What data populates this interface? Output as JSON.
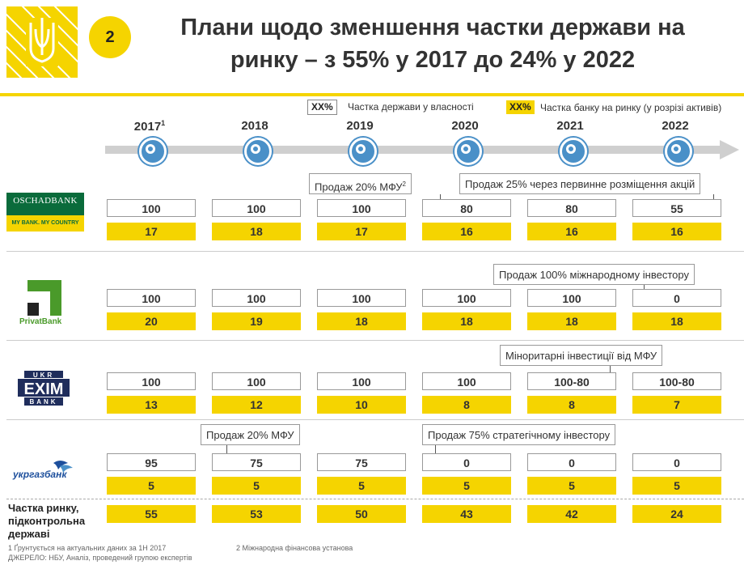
{
  "slide": {
    "number": "2",
    "title_line1": "Плани щодо зменшення частки держави на",
    "title_line2": "ринку – з 55% у 2017 до 24% у 2022"
  },
  "legend": {
    "box_white": "XX%",
    "white_label": "Частка держави у власності",
    "box_yellow": "XX%",
    "yellow_label": "Частка банку на ринку (у розрізі активів)"
  },
  "years": [
    {
      "label": "2017",
      "sup": "1"
    },
    {
      "label": "2018",
      "sup": ""
    },
    {
      "label": "2019",
      "sup": ""
    },
    {
      "label": "2020",
      "sup": ""
    },
    {
      "label": "2021",
      "sup": ""
    },
    {
      "label": "2022",
      "sup": ""
    }
  ],
  "banks": [
    {
      "name": "OSCHADBANK",
      "tagline": "MY BANK. MY COUNTRY",
      "state_share": [
        "100",
        "100",
        "100",
        "80",
        "80",
        "55"
      ],
      "market_share": [
        "17",
        "18",
        "17",
        "16",
        "16",
        "16"
      ]
    },
    {
      "name": "PrivatBank",
      "state_share": [
        "100",
        "100",
        "100",
        "100",
        "100",
        "0"
      ],
      "market_share": [
        "20",
        "19",
        "18",
        "18",
        "18",
        "18"
      ]
    },
    {
      "name_top": "UKR",
      "name_mid": "EXIM",
      "name_bot": "BANK",
      "state_share": [
        "100",
        "100",
        "100",
        "100",
        "100-80",
        "100-80"
      ],
      "market_share": [
        "13",
        "12",
        "10",
        "8",
        "8",
        "7"
      ]
    },
    {
      "name": "укргазбанк",
      "state_share": [
        "95",
        "75",
        "75",
        "0",
        "0",
        "0"
      ],
      "market_share": [
        "5",
        "5",
        "5",
        "5",
        "5",
        "5"
      ]
    }
  ],
  "notes": {
    "osc_2019": "Продаж 20% МФУ",
    "osc_2019_sup": "2",
    "osc_2022": "Продаж 25% через первинне розміщення акцій",
    "pb_2022": "Продаж 100% міжнародному інвестору",
    "exim_2021": "Міноритарні інвестиції від МФУ",
    "ug_2018": "Продаж 20% МФУ",
    "ug_2020": "Продаж 75% стратегічному інвестору"
  },
  "total": {
    "label_line1": "Частка ринку,",
    "label_line2": "підконтрольна",
    "label_line3": "державі",
    "values": [
      "55",
      "53",
      "50",
      "43",
      "42",
      "24"
    ]
  },
  "footnotes": {
    "f1": "1 Ґрунтується на актуальних даних за 1Н 2017",
    "f2": "2 Міжнародна фінансова установа",
    "source": "ДЖЕРЕЛО: НБУ, Аналіз, проведений групою експертів"
  },
  "colors": {
    "accent_yellow": "#f5d400",
    "timeline_blue": "#4a90c8",
    "oschad_green": "#0a6b3b",
    "privat_green": "#4a9a2a",
    "exim_navy": "#1f2d5c",
    "ukrgaz_blue": "#1d4f9c"
  }
}
